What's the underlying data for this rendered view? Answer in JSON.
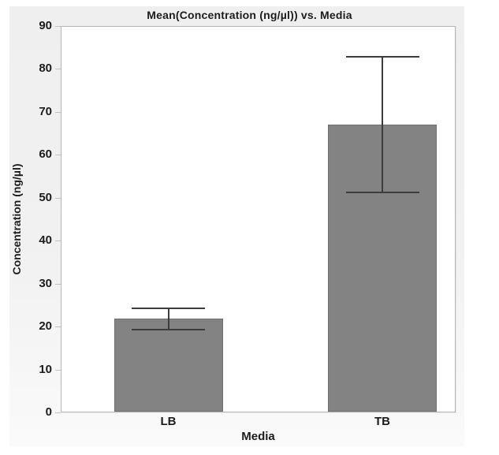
{
  "chart_data": {
    "type": "bar",
    "title": "Mean(Concentration (ng/µl)) vs. Media",
    "xlabel": "Media",
    "ylabel": "Concentration (ng/µl)",
    "categories": [
      "LB",
      "TB"
    ],
    "values": [
      21.8,
      67.0
    ],
    "error_bars": {
      "low": [
        19.3,
        51.2
      ],
      "high": [
        24.3,
        82.8
      ]
    },
    "ylim": [
      0,
      90
    ],
    "yticks": [
      0,
      10,
      20,
      30,
      40,
      50,
      60,
      70,
      80,
      90
    ],
    "grid": false,
    "legend_position": "none"
  },
  "colors": {
    "bar_fill": "#838383",
    "bar_border": "#6f6f6f",
    "error_bar": "#3d3d3d",
    "axis_line": "#b6b6b6",
    "tick_mark": "#c2c2c2",
    "text": "#1c1c1c",
    "panel_background": "#f0f0f0",
    "plot_background": "#ffffff"
  }
}
